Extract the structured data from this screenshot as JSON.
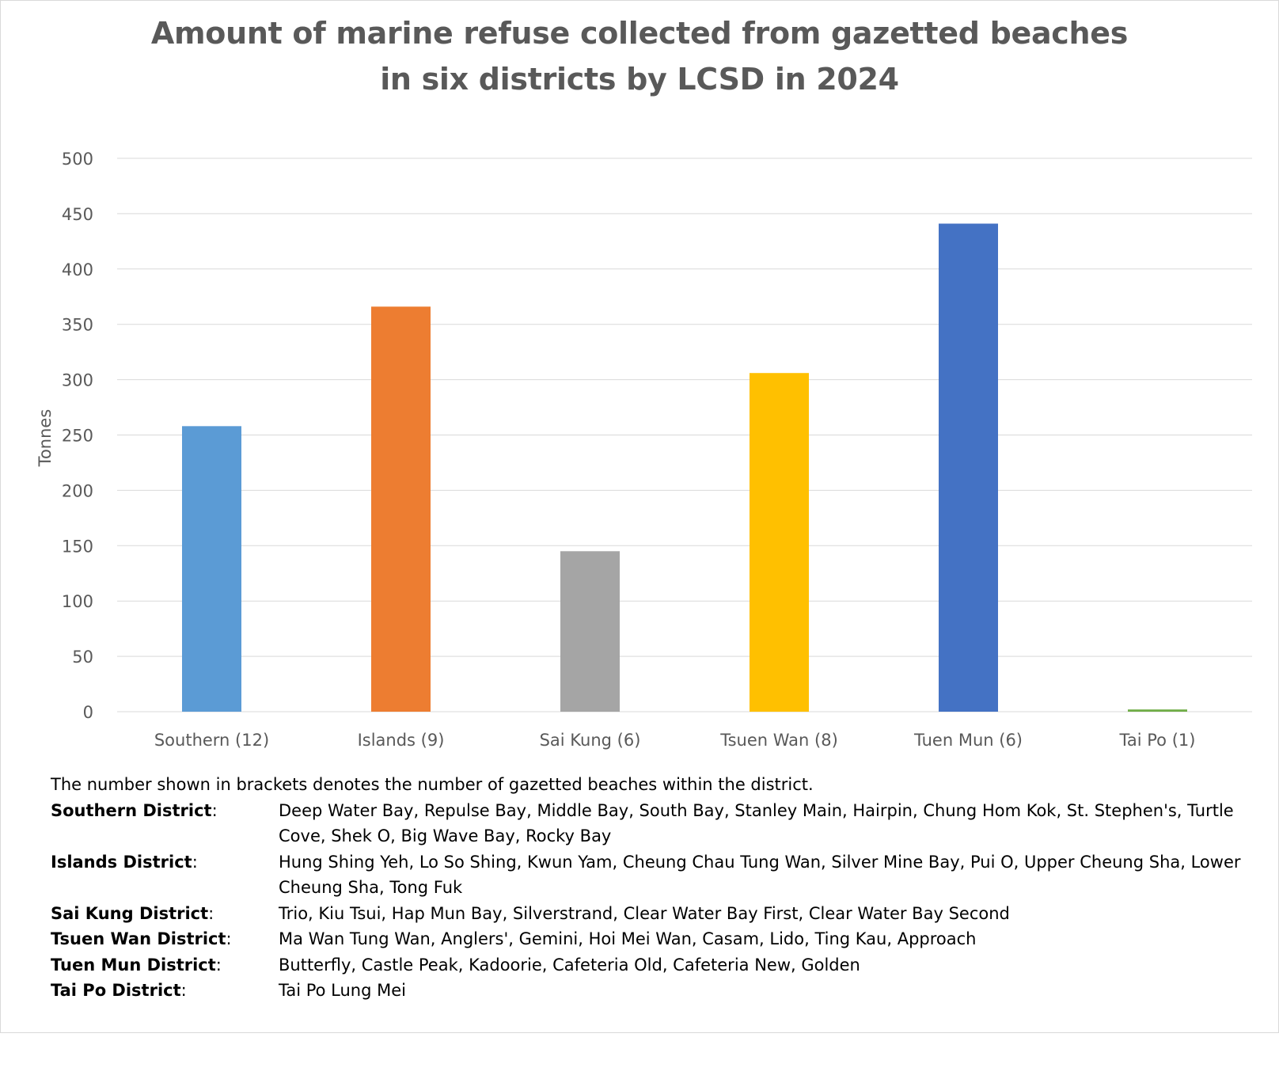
{
  "chart_data": {
    "type": "bar",
    "title": [
      "Amount of marine refuse collected from gazetted beaches",
      "in six districts by LCSD in 2024"
    ],
    "xlabel": "",
    "ylabel": "Tonnes",
    "ylim": [
      0,
      500
    ],
    "yticks": [
      0,
      50,
      100,
      150,
      200,
      250,
      300,
      350,
      400,
      450,
      500
    ],
    "grid": true,
    "legend": "none",
    "categories": [
      "Southern (12)",
      "Islands (9)",
      "Sai Kung (6)",
      "Tsuen Wan (8)",
      "Tuen Mun (6)",
      "Tai Po (1)"
    ],
    "values": [
      258,
      366,
      145,
      306,
      441,
      2
    ],
    "colors": [
      "#5b9bd5",
      "#ed7d31",
      "#a5a5a5",
      "#ffc000",
      "#4472c4",
      "#70ad47"
    ]
  },
  "notes": {
    "intro": "The number shown in brackets denotes the number of gazetted beaches within the district.",
    "districts": [
      {
        "name": "Southern District",
        "beaches": "Deep Water Bay, Repulse Bay, Middle Bay, South Bay, Stanley Main, Hairpin, Chung Hom Kok, St. Stephen's, Turtle Cove, Shek O, Big Wave Bay, Rocky Bay"
      },
      {
        "name": "Islands District",
        "beaches": "Hung Shing Yeh, Lo So Shing, Kwun Yam, Cheung Chau Tung Wan, Silver Mine Bay, Pui O, Upper Cheung Sha, Lower Cheung Sha, Tong Fuk"
      },
      {
        "name": "Sai Kung District",
        "beaches": "Trio, Kiu Tsui, Hap Mun Bay, Silverstrand, Clear Water Bay First, Clear Water Bay Second"
      },
      {
        "name": "Tsuen Wan District",
        "beaches": "Ma Wan Tung Wan, Anglers', Gemini, Hoi Mei Wan, Casam, Lido, Ting Kau, Approach"
      },
      {
        "name": "Tuen Mun District",
        "beaches": "Butterfly, Castle Peak, Kadoorie, Cafeteria Old, Cafeteria New, Golden"
      },
      {
        "name": "Tai Po District",
        "beaches": "Tai Po Lung Mei"
      }
    ]
  }
}
